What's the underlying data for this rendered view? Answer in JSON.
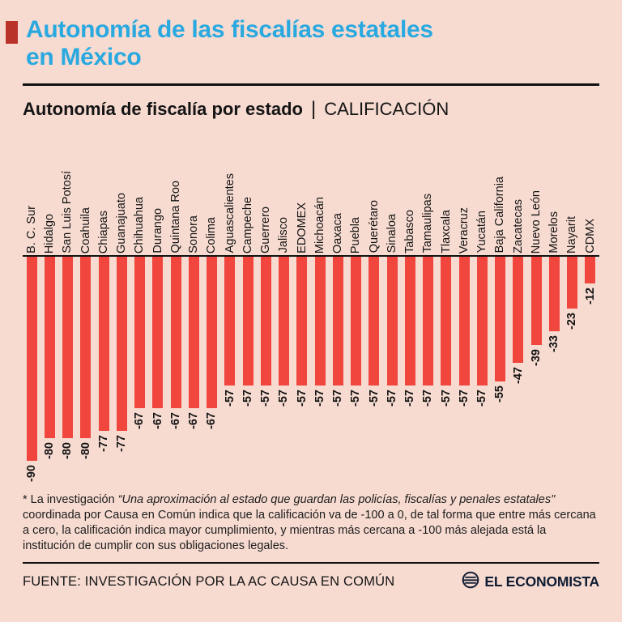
{
  "header": {
    "title": "Autonomía de las fiscalías estatales en México",
    "subtitle_bold": "Autonomía de fiscalía por estado",
    "subtitle_sep": "|",
    "subtitle_right": "CALIFICACIÓN"
  },
  "chart_data": {
    "type": "bar",
    "title": "Autonomía de fiscalía por estado | CALIFICACIÓN",
    "categories": [
      "B. C. Sur",
      "Hidalgo",
      "San Luis Potosí",
      "Coahuila",
      "Chiapas",
      "Guanajuato",
      "Chihuahua",
      "Durango",
      "Quintana Roo",
      "Sonora",
      "Colima",
      "Aguascalientes",
      "Campeche",
      "Guerrero",
      "Jalisco",
      "EDOMEX",
      "Michoacán",
      "Oaxaca",
      "Puebla",
      "Querétaro",
      "Sinaloa",
      "Tabasco",
      "Tamaulipas",
      "Tlaxcala",
      "Veracruz",
      "Yucatán",
      "Baja California",
      "Zacatecas",
      "Nuevo León",
      "Morelos",
      "Nayarit",
      "CDMX"
    ],
    "values": [
      -90,
      -80,
      -80,
      -80,
      -77,
      -77,
      -67,
      -67,
      -67,
      -67,
      -67,
      -57,
      -57,
      -57,
      -57,
      -57,
      -57,
      -57,
      -57,
      -57,
      -57,
      -57,
      -57,
      -57,
      -57,
      -57,
      -55,
      -47,
      -39,
      -33,
      -23,
      -12
    ],
    "ylim": [
      -100,
      0
    ],
    "orientation": "bars-descend-from-top-baseline",
    "value_labels": "rotated-90-at-bar-end",
    "category_labels": "rotated-90-above-baseline",
    "grid": false,
    "legend": "none"
  },
  "footnote": {
    "prefix": "* La investigación ",
    "quote": "“Una aproximación al estado que guardan las policías, fiscalías y penales estatales\"",
    "suffix": " coordinada por Causa en Común indica que la calificación va de -100 a 0, de tal forma que entre más cercana a cero, la calificación indica mayor cumplimiento, y mientras más cercana a -100 más alejada está la institución de cumplir con sus obligaciones legales."
  },
  "footer": {
    "source": "FUENTE: INVESTIGACIÓN POR LA AC CAUSA EN COMÚN",
    "logo_text": "EL ECONOMISTA"
  },
  "colors": {
    "background": "#f7dbd1",
    "bar": "#f0463e",
    "title": "#29a9e0",
    "accent_square": "#ba332a",
    "rule": "#111111",
    "logo": "#101c33"
  }
}
